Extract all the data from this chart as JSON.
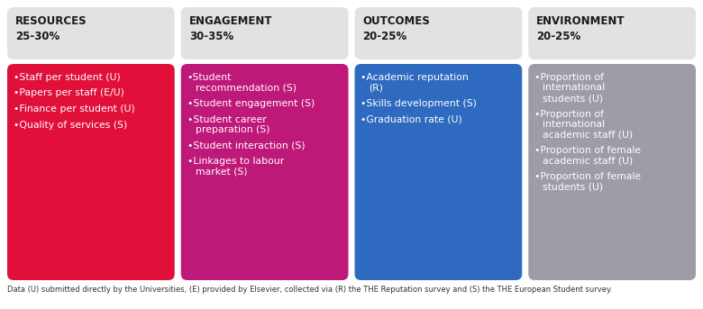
{
  "columns": [
    {
      "title_line1": "RESOURCES",
      "title_line2": "25-30%",
      "header_color": "#e2e2e2",
      "body_color": "#e0103a",
      "text_color": "#ffffff",
      "header_text_color": "#1a1a1a",
      "items": [
        [
          "Staff per student (U)"
        ],
        [
          "Papers per staff (E/U)"
        ],
        [
          "Finance per student (U)"
        ],
        [
          "Quality of services (S)"
        ]
      ]
    },
    {
      "title_line1": "ENGAGEMENT",
      "title_line2": "30-35%",
      "header_color": "#e2e2e2",
      "body_color": "#be1879",
      "text_color": "#ffffff",
      "header_text_color": "#1a1a1a",
      "items": [
        [
          "Student",
          "recommendation (S)"
        ],
        [
          "Student engagement (S)"
        ],
        [
          "Student career",
          "preparation (S)"
        ],
        [
          "Student interaction (S)"
        ],
        [
          "Linkages to labour",
          "market (S)"
        ]
      ]
    },
    {
      "title_line1": "OUTCOMES",
      "title_line2": "20-25%",
      "header_color": "#e2e2e2",
      "body_color": "#2e6abf",
      "text_color": "#ffffff",
      "header_text_color": "#1a1a1a",
      "items": [
        [
          "Academic reputation",
          "(R)"
        ],
        [
          "Skills development (S)"
        ],
        [
          "Graduation rate (U)"
        ]
      ]
    },
    {
      "title_line1": "ENVIRONMENT",
      "title_line2": "20-25%",
      "header_color": "#e2e2e2",
      "body_color": "#9c9da6",
      "text_color": "#ffffff",
      "header_text_color": "#1a1a1a",
      "items": [
        [
          "Proportion of",
          "international",
          "students (U)"
        ],
        [
          "Proportion of",
          "international",
          "academic staff (U)"
        ],
        [
          "Proportion of female",
          "academic staff (U)"
        ],
        [
          "Proportion of female",
          "students (U)"
        ]
      ]
    }
  ],
  "footer": "Data (U) submitted directly by the Universities, (E) provided by Elsevier, collected via (R) the THE Reputation survey and (S) the THE European Student survey.",
  "background_color": "#ffffff",
  "bullet": "•",
  "fig_width": 7.8,
  "fig_height": 3.43,
  "dpi": 100
}
